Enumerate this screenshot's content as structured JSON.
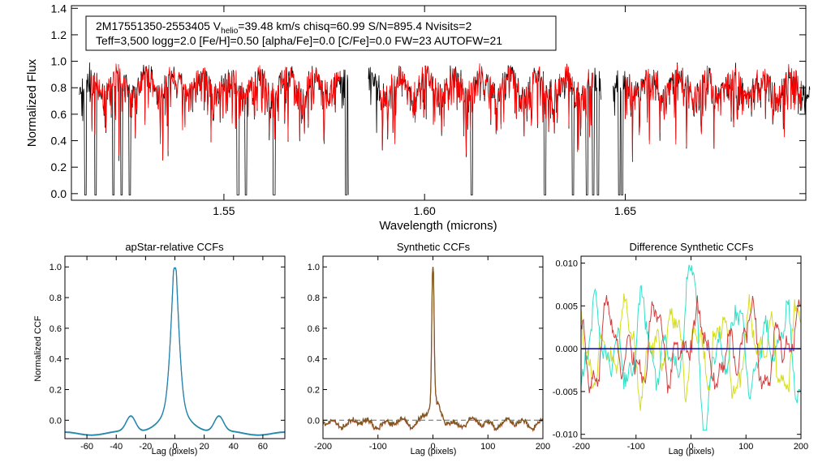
{
  "chart_data": [
    {
      "type": "line",
      "panel": "main-spectrum",
      "xlabel": "Wavelength (microns)",
      "ylabel": "Normalized Flux",
      "xlim": [
        1.512,
        1.695
      ],
      "ylim": [
        -0.05,
        1.42
      ],
      "xticks": [
        "1.55",
        "1.60",
        "1.65"
      ],
      "xtick_values": [
        1.55,
        1.6,
        1.65
      ],
      "yticks": [
        "0.0",
        "0.2",
        "0.4",
        "0.6",
        "0.8",
        "1.0",
        "1.2",
        "1.4"
      ],
      "ytick_values": [
        0.0,
        0.2,
        0.4,
        0.6,
        0.8,
        1.0,
        1.2,
        1.4
      ],
      "chips": [
        [
          1.514,
          1.581
        ],
        [
          1.586,
          1.644
        ],
        [
          1.647,
          1.696
        ]
      ],
      "series": [
        {
          "name": "observed",
          "color": "#000000"
        },
        {
          "name": "model",
          "color": "#ff0000"
        }
      ],
      "annotation": {
        "star": "2M17551350-2553405",
        "vhelio_prefix": "V",
        "vhelio_sub": "helio",
        "line1_rest": "=39.48 km/s  chisq=60.99  S/N=895.4  Nvisits=2",
        "line2": "Teff=3,500 logg=2.0 [Fe/H]=0.50 [alpha/Fe]=0.0 [C/Fe]=0.0 FW=23 AUTOFW=21"
      }
    },
    {
      "type": "line",
      "panel": "apstar-ccf",
      "title": "apStar-relative CCFs",
      "xlabel": "Lag (pixels)",
      "ylabel": "Normalized CCF",
      "xlim": [
        -75,
        75
      ],
      "ylim": [
        -0.12,
        1.07
      ],
      "xticks": [
        "-60",
        "-40",
        "-20",
        "0",
        "20",
        "40",
        "60"
      ],
      "xtick_values": [
        -60,
        -40,
        -20,
        0,
        20,
        40,
        60
      ],
      "yticks": [
        "0.0",
        "0.2",
        "0.4",
        "0.6",
        "0.8",
        "1.0"
      ],
      "ytick_values": [
        0.0,
        0.2,
        0.4,
        0.6,
        0.8,
        1.0
      ],
      "series": [
        {
          "name": "ccf-visit-1",
          "color": "#1f9f9f"
        },
        {
          "name": "ccf-visit-2",
          "color": "#2a7fb0"
        }
      ],
      "peak": {
        "lag": 0,
        "value": 0.99
      },
      "side_bumps": [
        {
          "lag": -30,
          "value": 0.06
        },
        {
          "lag": 30,
          "value": 0.06
        }
      ]
    },
    {
      "type": "line",
      "panel": "synthetic-ccf",
      "title": "Synthetic CCFs",
      "xlabel": "Lag (pixels)",
      "xlim": [
        -200,
        200
      ],
      "ylim": [
        -0.12,
        1.07
      ],
      "xticks": [
        "-200",
        "-100",
        "0",
        "100",
        "200"
      ],
      "xtick_values": [
        -200,
        -100,
        0,
        100,
        200
      ],
      "yticks": [
        "0.0",
        "0.2",
        "0.4",
        "0.6",
        "0.8",
        "1.0"
      ],
      "ytick_values": [
        0.0,
        0.2,
        0.4,
        0.6,
        0.8,
        1.0
      ],
      "series": [
        {
          "name": "ccf-a",
          "color": "#e04040"
        },
        {
          "name": "ccf-b",
          "color": "#7a5a20"
        }
      ],
      "reference_line": {
        "y": 0.0,
        "style": "dashed",
        "color": "#666666"
      },
      "peak": {
        "lag": 0,
        "value": 1.0
      }
    },
    {
      "type": "line",
      "panel": "difference-ccf",
      "title": "Difference Synthetic CCFs",
      "xlabel": "Lag (pixels)",
      "xlim": [
        -200,
        200
      ],
      "ylim": [
        -0.0105,
        0.0108
      ],
      "xticks": [
        "-200",
        "-100",
        "0",
        "100",
        "200"
      ],
      "xtick_values": [
        -200,
        -100,
        0,
        100,
        200
      ],
      "yticks": [
        "-0.010",
        "-0.005",
        "0.000",
        "0.005",
        "0.010"
      ],
      "ytick_values": [
        -0.01,
        -0.005,
        0.0,
        0.005,
        0.01
      ],
      "series": [
        {
          "name": "diff-1",
          "color": "#d4dd20"
        },
        {
          "name": "diff-2",
          "color": "#30e0c8"
        },
        {
          "name": "diff-3",
          "color": "#d04040"
        }
      ],
      "reference_line": {
        "y": 0.0,
        "style": "solid",
        "color": "#0000aa"
      }
    }
  ]
}
